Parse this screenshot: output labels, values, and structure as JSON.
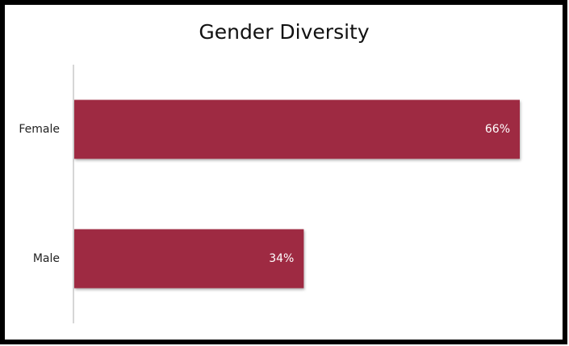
{
  "chart_data": {
    "type": "hbar",
    "title": "Gender Diversity",
    "categories": [
      "Female",
      "Male"
    ],
    "values": [
      66,
      34
    ],
    "value_labels": [
      "66%",
      "34%"
    ],
    "color": "#9e2a43"
  }
}
